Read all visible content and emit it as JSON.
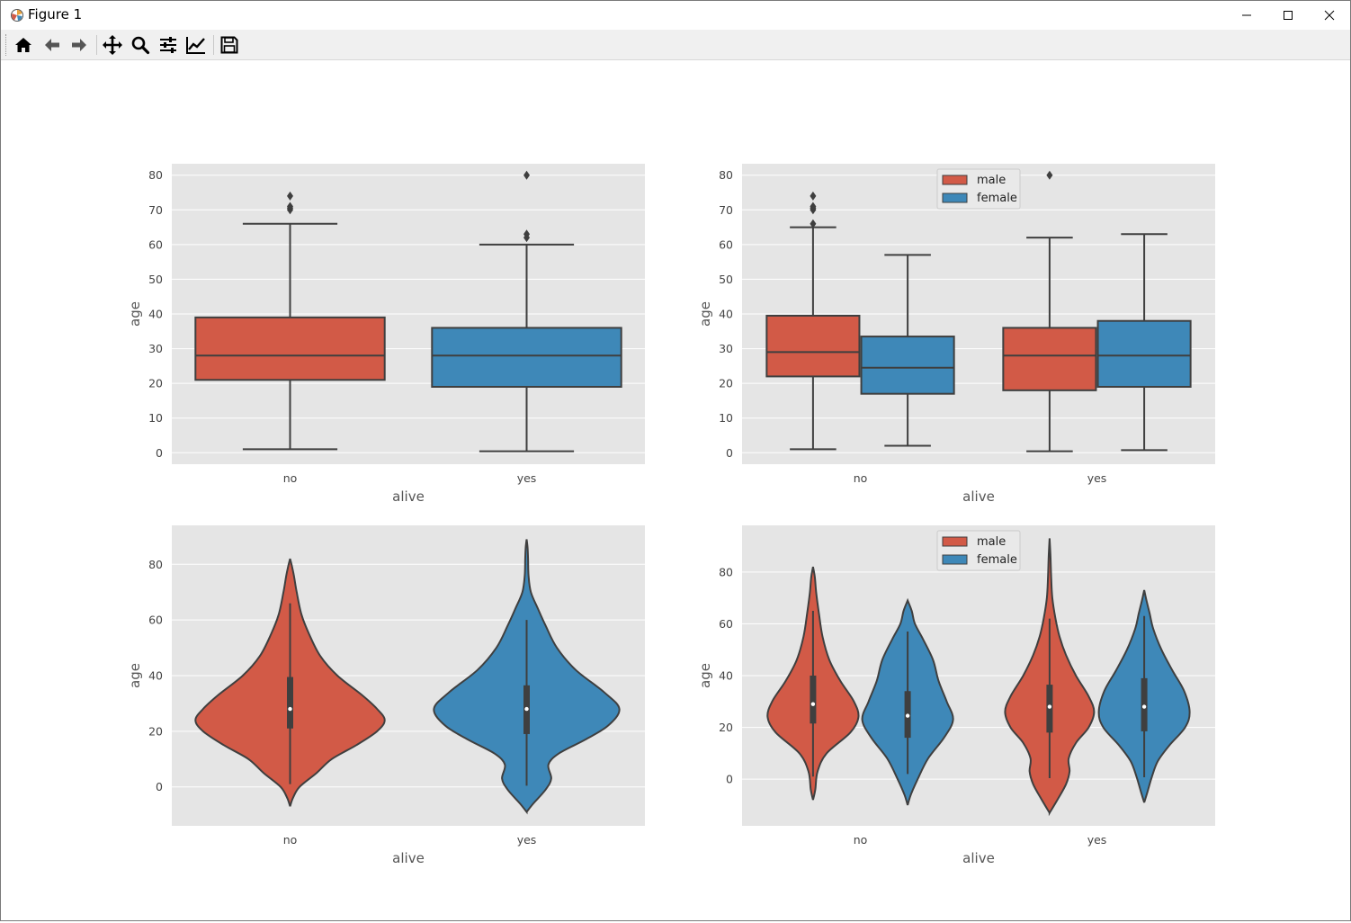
{
  "window": {
    "title": "Figure 1"
  },
  "toolbar": {
    "buttons": [
      "home-icon",
      "back-icon",
      "forward-icon",
      "pan-icon",
      "zoom-icon",
      "configure-subplots-icon",
      "edit-axis-icon",
      "save-icon"
    ]
  },
  "colors": {
    "male": "#d25a47",
    "female": "#3e88b8",
    "axes_bg": "#e5e5e5",
    "edge": "#3f3f3f"
  },
  "chart_data": [
    {
      "type": "box",
      "title": "",
      "xlabel": "alive",
      "ylabel": "age",
      "categories": [
        "no",
        "yes"
      ],
      "ylim": [
        -3.3,
        83.3
      ],
      "yticks": [
        "0",
        "10",
        "20",
        "30",
        "40",
        "50",
        "60",
        "70",
        "80"
      ],
      "series": [
        {
          "name": "no",
          "color": "#d25a47",
          "whislo": 1,
          "q1": 21,
          "med": 28,
          "q3": 39,
          "whishi": 66,
          "fliers": [
            70,
            70.5,
            71,
            74
          ]
        },
        {
          "name": "yes",
          "color": "#3e88b8",
          "whislo": 0.42,
          "q1": 19,
          "med": 28,
          "q3": 36,
          "whishi": 60,
          "fliers": [
            62,
            63,
            80
          ]
        }
      ]
    },
    {
      "type": "box",
      "title": "",
      "xlabel": "alive",
      "ylabel": "age",
      "categories": [
        "no",
        "yes"
      ],
      "hue": [
        "male",
        "female"
      ],
      "legend": {
        "entries": [
          "male",
          "female"
        ],
        "loc": "upper-center"
      },
      "ylim": [
        -3.3,
        83.3
      ],
      "yticks": [
        "0",
        "10",
        "20",
        "30",
        "40",
        "50",
        "60",
        "70",
        "80"
      ],
      "series": [
        {
          "name": "male",
          "color": "#d25a47",
          "boxes": [
            {
              "category": "no",
              "whislo": 1,
              "q1": 22,
              "med": 29,
              "q3": 39.5,
              "whishi": 65,
              "fliers": [
                66,
                70,
                70.5,
                71,
                74
              ]
            },
            {
              "category": "yes",
              "whislo": 0.42,
              "q1": 18,
              "med": 28,
              "q3": 36,
              "whishi": 62,
              "fliers": [
                80
              ]
            }
          ]
        },
        {
          "name": "female",
          "color": "#3e88b8",
          "boxes": [
            {
              "category": "no",
              "whislo": 2,
              "q1": 17,
              "med": 24.5,
              "q3": 33.5,
              "whishi": 57,
              "fliers": []
            },
            {
              "category": "yes",
              "whislo": 0.75,
              "q1": 19,
              "med": 28,
              "q3": 38,
              "whishi": 63,
              "fliers": []
            }
          ]
        }
      ]
    },
    {
      "type": "violin",
      "title": "",
      "xlabel": "alive",
      "ylabel": "age",
      "categories": [
        "no",
        "yes"
      ],
      "ylim": [
        -14,
        94
      ],
      "yticks": [
        "0",
        "20",
        "40",
        "60",
        "80"
      ],
      "series": [
        {
          "name": "no",
          "color": "#d25a47",
          "q1": 21,
          "med": 28,
          "q3": 39.5,
          "whislo": 1,
          "whishi": 66,
          "profile": [
            [
              -7,
              0
            ],
            [
              -4,
              0.03
            ],
            [
              0,
              0.1
            ],
            [
              5,
              0.28
            ],
            [
              10,
              0.44
            ],
            [
              15,
              0.7
            ],
            [
              20,
              0.92
            ],
            [
              24,
              1.0
            ],
            [
              28,
              0.92
            ],
            [
              33,
              0.76
            ],
            [
              40,
              0.5
            ],
            [
              47,
              0.32
            ],
            [
              55,
              0.2
            ],
            [
              62,
              0.12
            ],
            [
              70,
              0.07
            ],
            [
              76,
              0.04
            ],
            [
              80,
              0.015
            ],
            [
              82,
              0
            ]
          ]
        },
        {
          "name": "yes",
          "color": "#3e88b8",
          "q1": 19,
          "med": 28,
          "q3": 36.5,
          "whislo": 0.42,
          "whishi": 60,
          "profile": [
            [
              -9,
              0
            ],
            [
              -6,
              0.07
            ],
            [
              -1,
              0.2
            ],
            [
              3,
              0.26
            ],
            [
              8,
              0.23
            ],
            [
              12,
              0.34
            ],
            [
              17,
              0.62
            ],
            [
              22,
              0.86
            ],
            [
              28,
              0.98
            ],
            [
              34,
              0.82
            ],
            [
              42,
              0.52
            ],
            [
              50,
              0.32
            ],
            [
              58,
              0.2
            ],
            [
              64,
              0.12
            ],
            [
              70,
              0.045
            ],
            [
              76,
              0.02
            ],
            [
              82,
              0.015
            ],
            [
              86,
              0.01
            ],
            [
              89,
              0
            ]
          ]
        }
      ]
    },
    {
      "type": "violin",
      "title": "",
      "xlabel": "alive",
      "ylabel": "age",
      "categories": [
        "no",
        "yes"
      ],
      "hue": [
        "male",
        "female"
      ],
      "legend": {
        "entries": [
          "male",
          "female"
        ],
        "loc": "upper-center"
      },
      "ylim": [
        -18,
        98
      ],
      "yticks": [
        "0",
        "20",
        "40",
        "60",
        "80"
      ],
      "series": [
        {
          "name": "male",
          "color": "#d25a47",
          "violins": [
            {
              "category": "no",
              "q1": 21.5,
              "med": 29,
              "q3": 40,
              "whislo": 1,
              "whishi": 65,
              "profile": [
                [
                  -8,
                  0
                ],
                [
                  -4,
                  0.05
                ],
                [
                  3,
                  0.1
                ],
                [
                  10,
                  0.3
                ],
                [
                  18,
                  0.82
                ],
                [
                  24,
                  1.0
                ],
                [
                  30,
                  0.9
                ],
                [
                  38,
                  0.6
                ],
                [
                  46,
                  0.36
                ],
                [
                  55,
                  0.21
                ],
                [
                  64,
                  0.13
                ],
                [
                  72,
                  0.07
                ],
                [
                  78,
                  0.04
                ],
                [
                  82,
                  0
                ]
              ]
            },
            {
              "category": "yes",
              "q1": 18,
              "med": 28,
              "q3": 36.5,
              "whislo": 0.42,
              "whishi": 62,
              "profile": [
                [
                  -13,
                  0
                ],
                [
                  -8,
                  0.17
                ],
                [
                  -2,
                  0.36
                ],
                [
                  3,
                  0.44
                ],
                [
                  8,
                  0.42
                ],
                [
                  14,
                  0.58
                ],
                [
                  20,
                  0.86
                ],
                [
                  26,
                  0.98
                ],
                [
                  32,
                  0.86
                ],
                [
                  40,
                  0.58
                ],
                [
                  48,
                  0.36
                ],
                [
                  55,
                  0.22
                ],
                [
                  62,
                  0.13
                ],
                [
                  70,
                  0.06
                ],
                [
                  78,
                  0.035
                ],
                [
                  86,
                  0.02
                ],
                [
                  93,
                  0
                ]
              ]
            }
          ]
        },
        {
          "name": "female",
          "color": "#3e88b8",
          "violins": [
            {
              "category": "no",
              "q1": 16,
              "med": 24.5,
              "q3": 34,
              "whislo": 2,
              "whishi": 57,
              "profile": [
                [
                  -10,
                  0
                ],
                [
                  -6,
                  0.07
                ],
                [
                  0,
                  0.22
                ],
                [
                  8,
                  0.45
                ],
                [
                  16,
                  0.8
                ],
                [
                  23,
                  1.0
                ],
                [
                  30,
                  0.86
                ],
                [
                  38,
                  0.68
                ],
                [
                  46,
                  0.56
                ],
                [
                  54,
                  0.34
                ],
                [
                  60,
                  0.16
                ],
                [
                  65,
                  0.09
                ],
                [
                  69,
                  0
                ]
              ]
            },
            {
              "category": "yes",
              "q1": 18.5,
              "med": 28,
              "q3": 39,
              "whislo": 0.75,
              "whishi": 63,
              "profile": [
                [
                  -9,
                  0
                ],
                [
                  -5,
                  0.07
                ],
                [
                  1,
                  0.17
                ],
                [
                  7,
                  0.3
                ],
                [
                  13,
                  0.55
                ],
                [
                  20,
                  0.9
                ],
                [
                  26,
                  1.0
                ],
                [
                  34,
                  0.88
                ],
                [
                  42,
                  0.62
                ],
                [
                  50,
                  0.38
                ],
                [
                  58,
                  0.2
                ],
                [
                  64,
                  0.12
                ],
                [
                  69,
                  0.05
                ],
                [
                  73,
                  0
                ]
              ]
            }
          ]
        }
      ]
    }
  ]
}
